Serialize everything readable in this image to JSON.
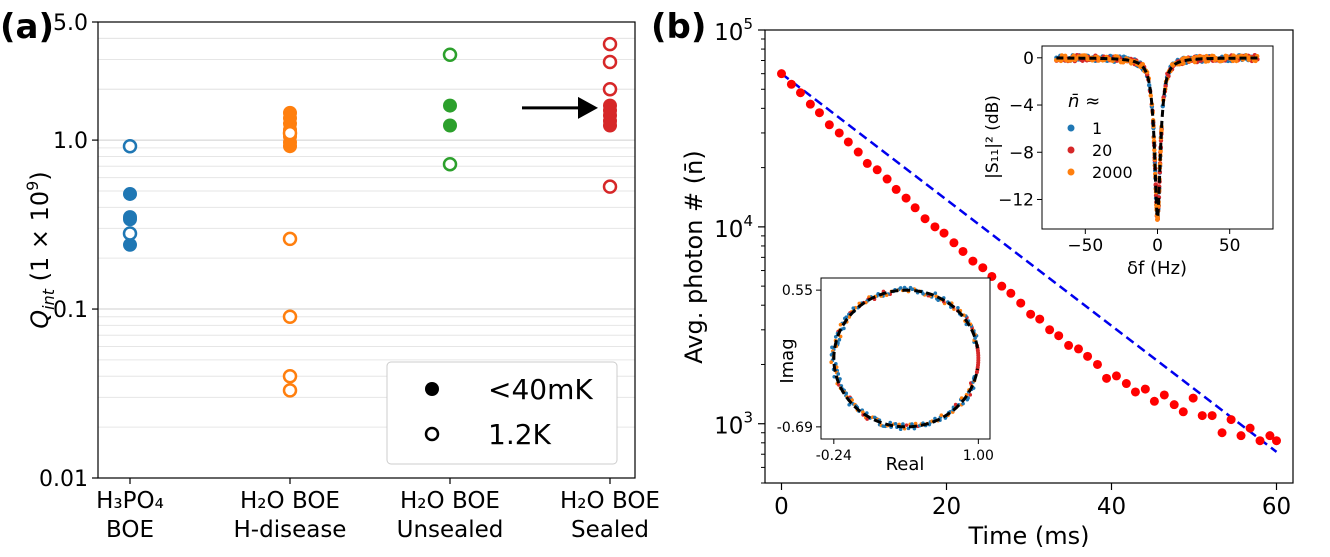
{
  "chart_data": [
    {
      "type": "scatter",
      "panel_label": "(a)",
      "ylabel_main": "Q",
      "ylabel_sub": "int",
      "ylabel_suffix": " (1 × 10",
      "ylabel_exp": "9",
      "ylabel_close": ")",
      "yscale": "log",
      "ylim": [
        0.01,
        5.0
      ],
      "yticks": [
        {
          "value": 0.01,
          "label": "0.01"
        },
        {
          "value": 0.1,
          "label": "0.1"
        },
        {
          "value": 1.0,
          "label": "1.0"
        },
        {
          "value": 5.0,
          "label": "5.0"
        }
      ],
      "grid": "horizontal",
      "categories": [
        {
          "line1": "H₃PO₄",
          "line2": "BOE",
          "color": "#1f77b4"
        },
        {
          "line1": "H₂O BOE",
          "line2": "H-disease",
          "color": "#ff7f0e"
        },
        {
          "line1": "H₂O BOE",
          "line2": "Unsealed",
          "color": "#2ca02c"
        },
        {
          "line1": "H₂O BOE",
          "line2": "Sealed",
          "color": "#d62728"
        }
      ],
      "series": [
        {
          "name": "<40mK",
          "marker": "filled",
          "points": [
            {
              "cat": 0,
              "y": 0.48
            },
            {
              "cat": 0,
              "y": 0.35
            },
            {
              "cat": 0,
              "y": 0.34
            },
            {
              "cat": 0,
              "y": 0.24
            },
            {
              "cat": 1,
              "y": 1.45
            },
            {
              "cat": 1,
              "y": 1.35
            },
            {
              "cat": 1,
              "y": 1.25
            },
            {
              "cat": 1,
              "y": 1.15
            },
            {
              "cat": 1,
              "y": 1.05
            },
            {
              "cat": 1,
              "y": 0.97
            },
            {
              "cat": 1,
              "y": 0.92
            },
            {
              "cat": 2,
              "y": 1.6
            },
            {
              "cat": 2,
              "y": 1.22
            },
            {
              "cat": 3,
              "y": 1.6
            },
            {
              "cat": 3,
              "y": 1.5
            },
            {
              "cat": 3,
              "y": 1.4
            },
            {
              "cat": 3,
              "y": 1.3
            },
            {
              "cat": 3,
              "y": 1.22
            }
          ]
        },
        {
          "name": "1.2K",
          "marker": "open",
          "points": [
            {
              "cat": 0,
              "y": 0.92
            },
            {
              "cat": 0,
              "y": 0.28
            },
            {
              "cat": 1,
              "y": 1.1
            },
            {
              "cat": 1,
              "y": 0.26
            },
            {
              "cat": 1,
              "y": 0.09
            },
            {
              "cat": 1,
              "y": 0.04
            },
            {
              "cat": 1,
              "y": 0.033
            },
            {
              "cat": 2,
              "y": 3.2
            },
            {
              "cat": 2,
              "y": 0.72
            },
            {
              "cat": 3,
              "y": 3.7
            },
            {
              "cat": 3,
              "y": 2.9
            },
            {
              "cat": 3,
              "y": 2.0
            },
            {
              "cat": 3,
              "y": 0.53
            }
          ]
        }
      ],
      "arrow_target": {
        "cat": 3,
        "y": 1.55
      },
      "legend_placement": "lower-right"
    },
    {
      "type": "scatter",
      "panel_label": "(b)",
      "xlabel": "Time (ms)",
      "ylabel": "Avg. photon # (n̄)",
      "xlim": [
        -2,
        62
      ],
      "xticks": [
        0,
        20,
        40,
        60
      ],
      "yscale": "log",
      "ylim": [
        500,
        100000
      ],
      "yticks": [
        {
          "value": 1000,
          "base": "10",
          "exp": "3"
        },
        {
          "value": 10000,
          "base": "10",
          "exp": "4"
        },
        {
          "value": 100000,
          "base": "10",
          "exp": "5"
        }
      ],
      "point_color": "#ff0000",
      "fit_color": "#0000ee",
      "fit_line": {
        "x": [
          0,
          60
        ],
        "y": [
          60000,
          720
        ]
      },
      "data": {
        "x": [
          0,
          1.2,
          2.3,
          3.5,
          4.6,
          5.8,
          7.0,
          8.1,
          9.3,
          10.4,
          11.6,
          12.8,
          13.9,
          15.1,
          16.2,
          17.4,
          18.6,
          19.7,
          20.9,
          22.0,
          23.2,
          24.4,
          25.5,
          26.7,
          27.8,
          29.0,
          30.2,
          31.3,
          32.5,
          33.6,
          34.8,
          36.0,
          37.1,
          38.3,
          39.4,
          40.6,
          41.8,
          42.9,
          44.1,
          45.2,
          46.4,
          47.6,
          48.7,
          49.9,
          51.0,
          52.2,
          53.4,
          54.5,
          55.7,
          56.8,
          58.0,
          59.2,
          60.0
        ],
        "y": [
          60000,
          53000,
          48000,
          42000,
          38000,
          33000,
          30000,
          27000,
          24000,
          21000,
          19500,
          17500,
          15500,
          14000,
          12500,
          11000,
          10000,
          9300,
          8300,
          7500,
          6700,
          6200,
          5600,
          5000,
          4600,
          4100,
          3600,
          3400,
          3000,
          2800,
          2500,
          2400,
          2200,
          2000,
          1700,
          1750,
          1600,
          1450,
          1500,
          1300,
          1400,
          1250,
          1150,
          1350,
          1100,
          1100,
          900,
          1050,
          870,
          950,
          820,
          870,
          820
        ]
      },
      "insets": [
        {
          "type": "line",
          "xlabel": "δf (Hz)",
          "ylabel": "|S₁₁|² (dB)",
          "xlim": [
            -80,
            80
          ],
          "ylim": [
            -14.5,
            1.0
          ],
          "xticks": [
            -50,
            0,
            50
          ],
          "yticks": [
            0,
            -4,
            -8,
            -12
          ],
          "legend_title": "n̄ ≈",
          "series": [
            {
              "name": "1",
              "color": "#1f77b4"
            },
            {
              "name": "20",
              "color": "#d62728"
            },
            {
              "name": "2000",
              "color": "#ff7f0e"
            }
          ],
          "fit_color": "#000000",
          "dip": {
            "center_hz": 0,
            "depth_db": -13.5,
            "halfwidth_hz": 2.5
          }
        },
        {
          "type": "scatter",
          "xlabel": "Real",
          "ylabel": "Imag",
          "xlim": [
            -0.35,
            1.1
          ],
          "ylim": [
            -0.8,
            0.66
          ],
          "xtick_labels": [
            {
              "value": -0.24,
              "label": "-0.24"
            },
            {
              "value": 1.0,
              "label": "1.00"
            }
          ],
          "ytick_labels": [
            {
              "value": 0.55,
              "label": "0.55"
            },
            {
              "value": -0.69,
              "label": "-0.69"
            }
          ],
          "circle": {
            "cx": 0.38,
            "cy": -0.07,
            "r": 0.62
          },
          "fit_color": "#000000",
          "point_colors": [
            "#1f77b4",
            "#ff7f0e",
            "#d62728"
          ]
        }
      ]
    }
  ]
}
